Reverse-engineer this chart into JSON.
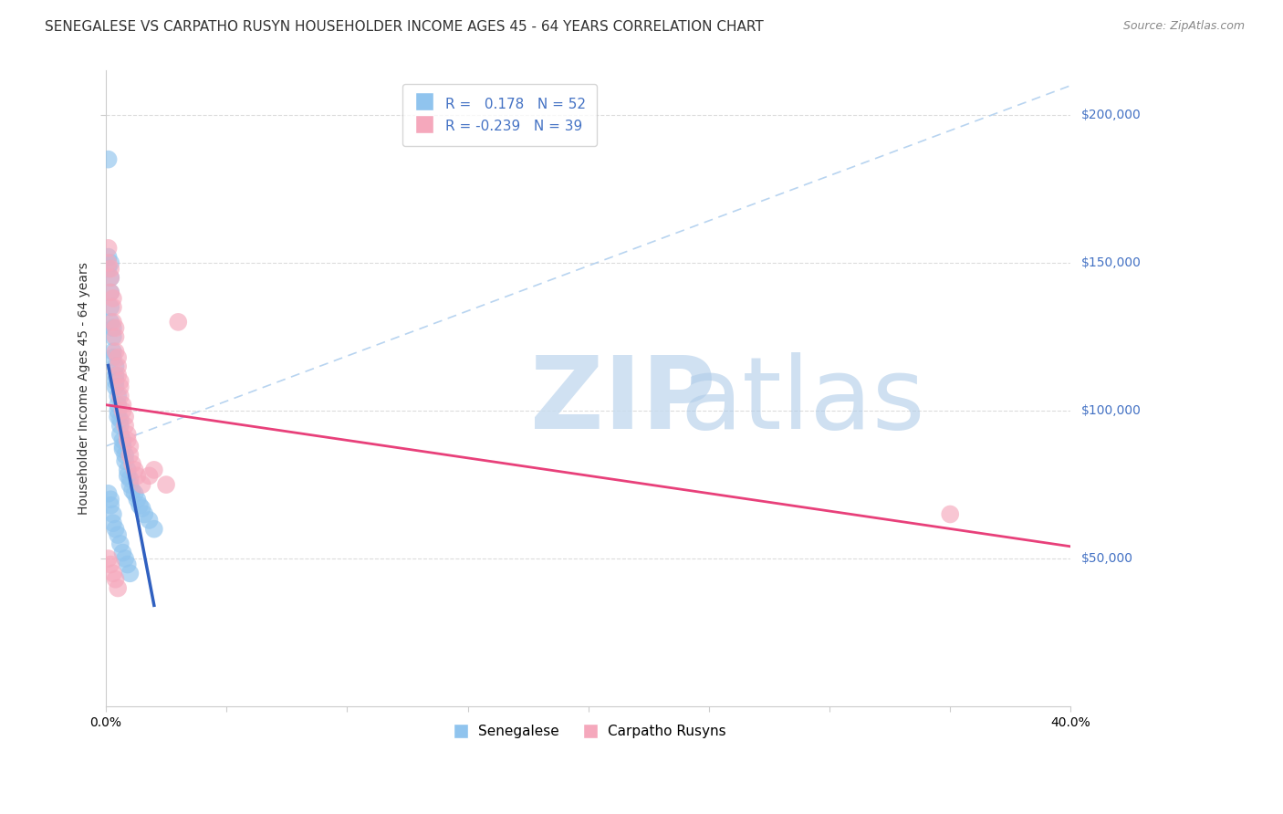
{
  "title": "SENEGALESE VS CARPATHO RUSYN HOUSEHOLDER INCOME AGES 45 - 64 YEARS CORRELATION CHART",
  "source": "Source: ZipAtlas.com",
  "ylabel": "Householder Income Ages 45 - 64 years",
  "xlim": [
    0.0,
    0.4
  ],
  "ylim": [
    0,
    215000
  ],
  "yticks": [
    50000,
    100000,
    150000,
    200000
  ],
  "xticks": [
    0.0,
    0.05,
    0.1,
    0.15,
    0.2,
    0.25,
    0.3,
    0.35,
    0.4
  ],
  "background_color": "#ffffff",
  "senegalese_R": 0.178,
  "senegalese_N": 52,
  "carpatho_R": -0.239,
  "carpatho_N": 39,
  "blue_color": "#90C4EE",
  "pink_color": "#F5A8BC",
  "blue_line_color": "#3060C0",
  "pink_line_color": "#E8407A",
  "dashed_line_color": "#B8D4F0",
  "senegalese_x": [
    0.001,
    0.001,
    0.001,
    0.002,
    0.002,
    0.002,
    0.002,
    0.002,
    0.003,
    0.003,
    0.003,
    0.003,
    0.004,
    0.004,
    0.004,
    0.004,
    0.005,
    0.005,
    0.005,
    0.005,
    0.006,
    0.006,
    0.006,
    0.007,
    0.007,
    0.007,
    0.008,
    0.008,
    0.009,
    0.009,
    0.01,
    0.01,
    0.011,
    0.012,
    0.013,
    0.014,
    0.015,
    0.016,
    0.018,
    0.02,
    0.001,
    0.002,
    0.002,
    0.003,
    0.003,
    0.004,
    0.005,
    0.006,
    0.007,
    0.008,
    0.009,
    0.01
  ],
  "senegalese_y": [
    185000,
    152000,
    148000,
    150000,
    145000,
    140000,
    135000,
    130000,
    128000,
    125000,
    120000,
    118000,
    115000,
    112000,
    110000,
    108000,
    105000,
    102000,
    100000,
    98000,
    97000,
    95000,
    92000,
    90000,
    88000,
    87000,
    85000,
    83000,
    80000,
    78000,
    77000,
    75000,
    73000,
    72000,
    70000,
    68000,
    67000,
    65000,
    63000,
    60000,
    72000,
    70000,
    68000,
    65000,
    62000,
    60000,
    58000,
    55000,
    52000,
    50000,
    48000,
    45000
  ],
  "carpatho_x": [
    0.001,
    0.001,
    0.002,
    0.002,
    0.002,
    0.003,
    0.003,
    0.003,
    0.004,
    0.004,
    0.004,
    0.005,
    0.005,
    0.005,
    0.006,
    0.006,
    0.006,
    0.007,
    0.007,
    0.008,
    0.008,
    0.009,
    0.009,
    0.01,
    0.01,
    0.011,
    0.012,
    0.013,
    0.015,
    0.018,
    0.02,
    0.025,
    0.03,
    0.35,
    0.001,
    0.002,
    0.003,
    0.004,
    0.005
  ],
  "carpatho_y": [
    155000,
    150000,
    148000,
    145000,
    140000,
    138000,
    135000,
    130000,
    128000,
    125000,
    120000,
    118000,
    115000,
    112000,
    110000,
    108000,
    105000,
    102000,
    100000,
    98000,
    95000,
    92000,
    90000,
    88000,
    85000,
    82000,
    80000,
    78000,
    75000,
    78000,
    80000,
    75000,
    130000,
    65000,
    50000,
    48000,
    45000,
    43000,
    40000
  ],
  "grid_color": "#DCDCDC",
  "title_fontsize": 11,
  "axis_label_fontsize": 10,
  "tick_fontsize": 10,
  "legend_fontsize": 11
}
